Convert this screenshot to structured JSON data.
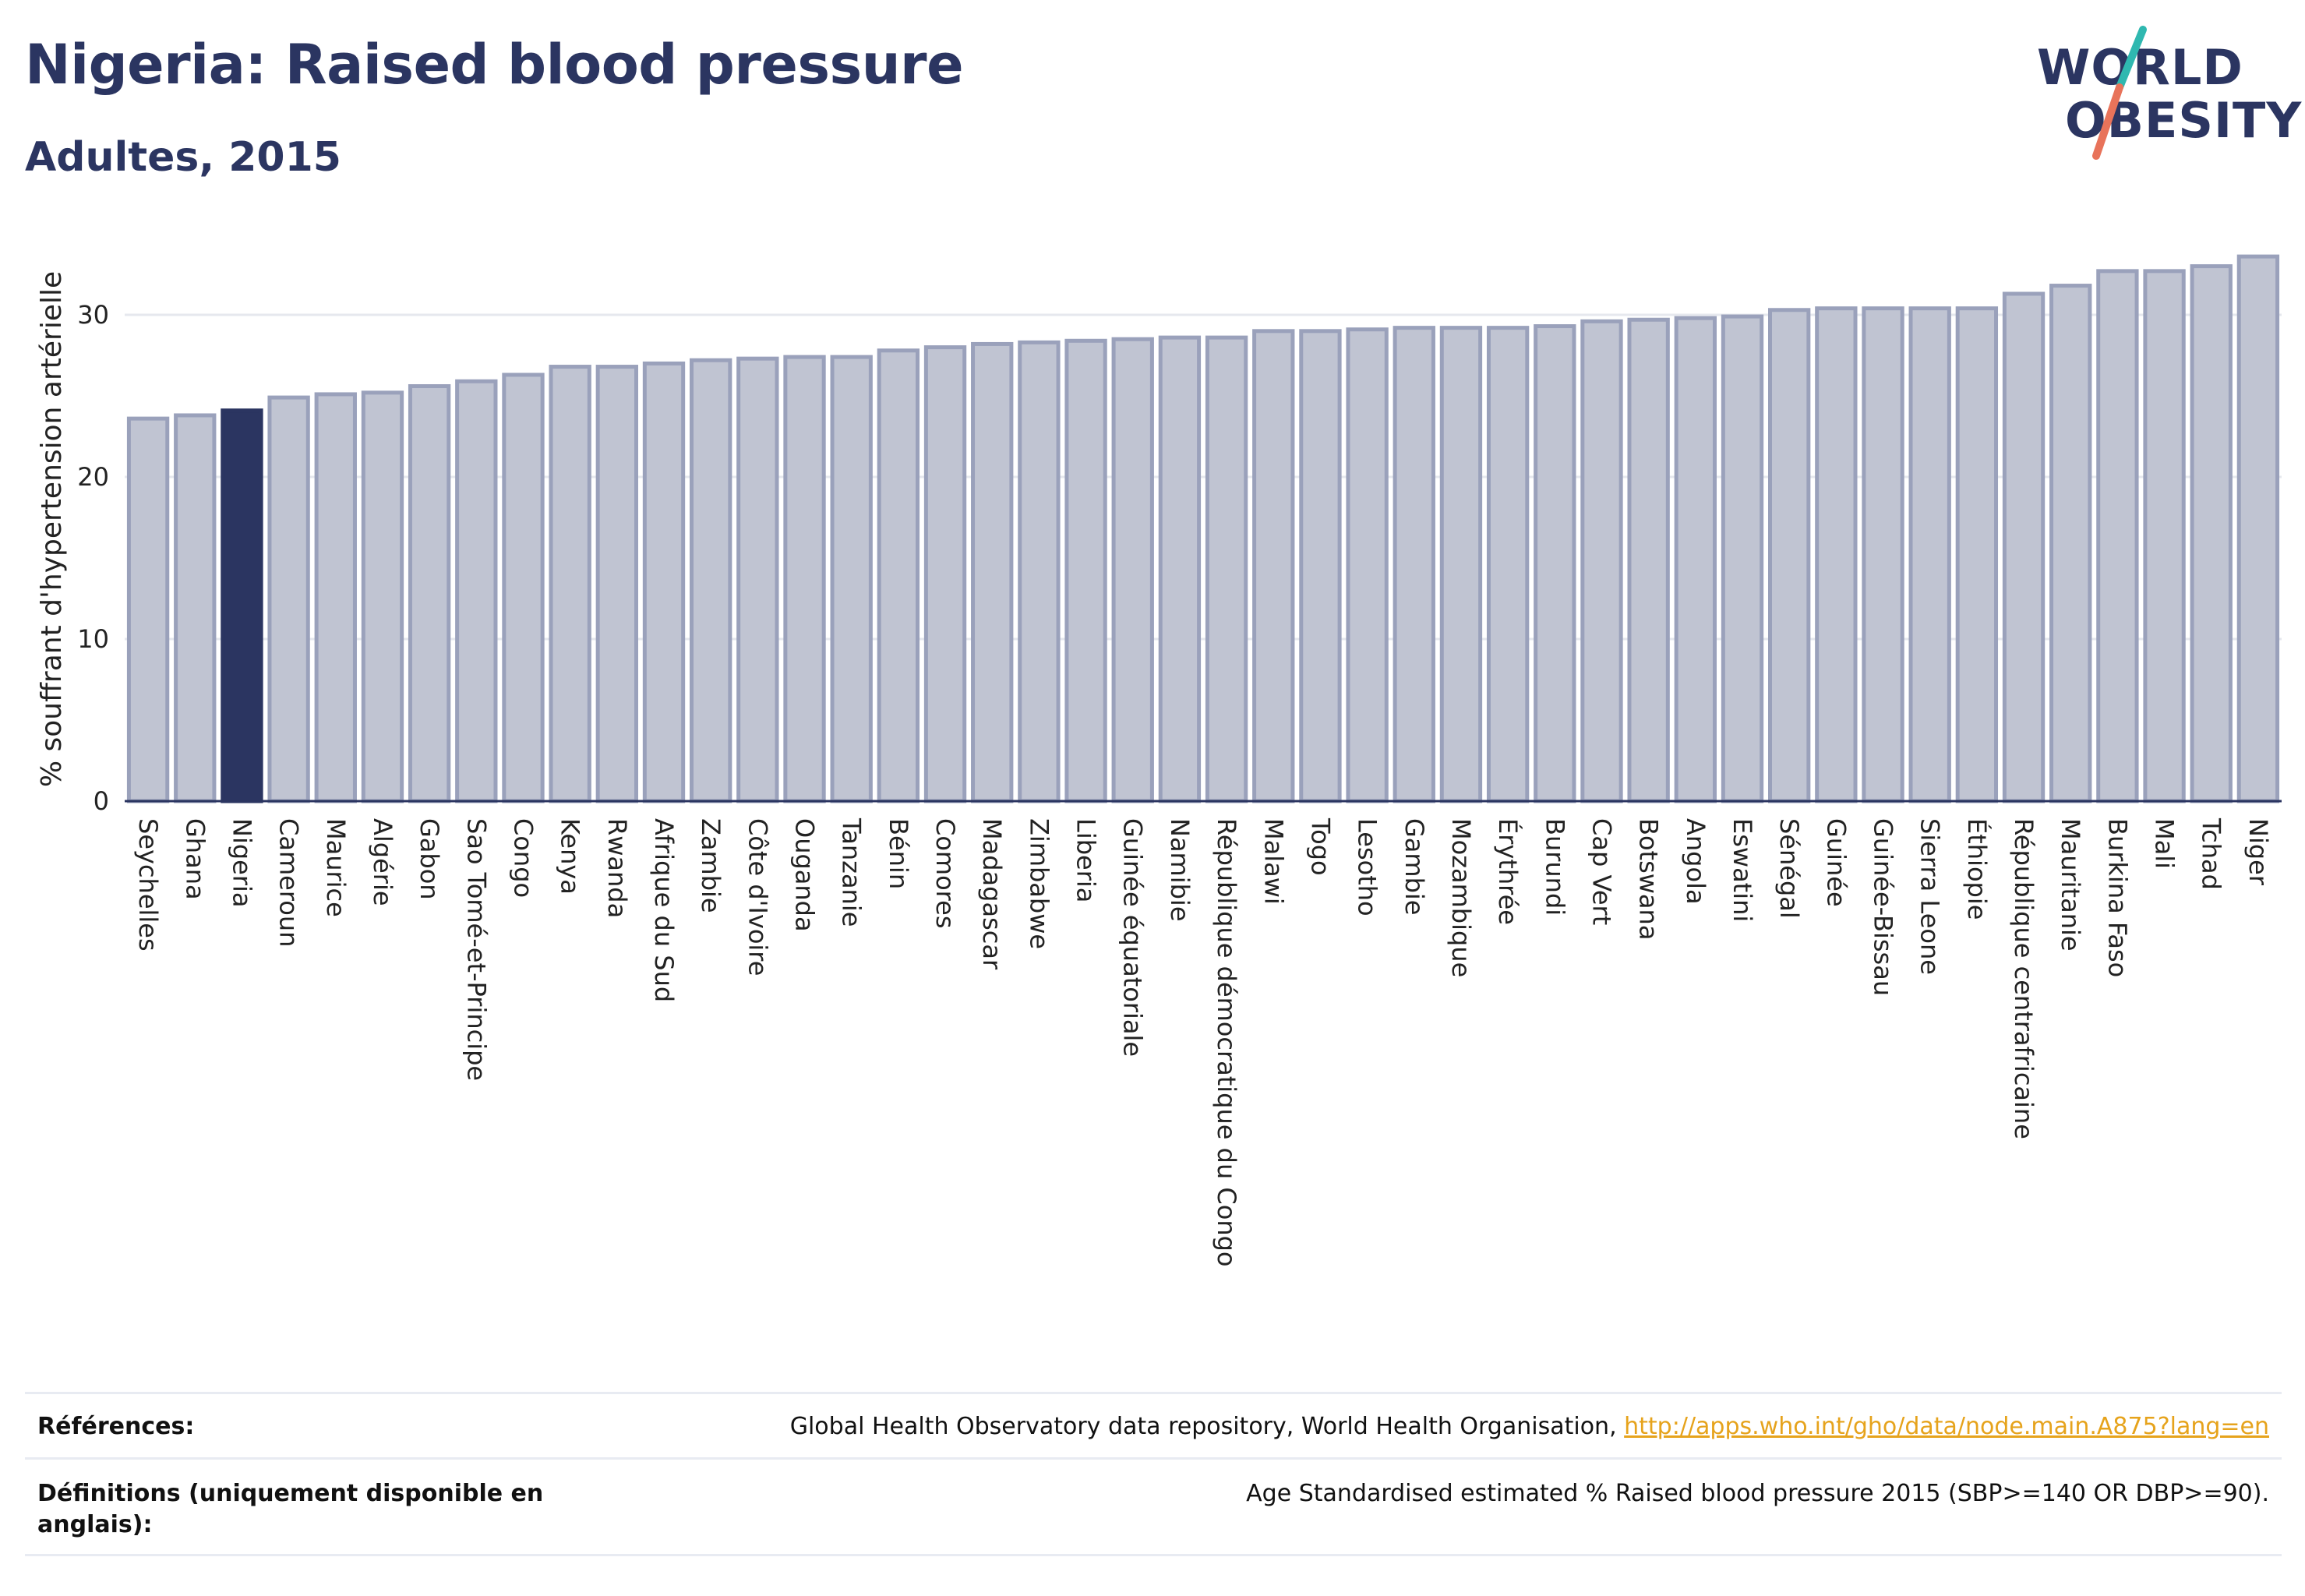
{
  "header": {
    "title": "Nigeria: Raised blood pressure",
    "subtitle": "Adultes, 2015"
  },
  "logo": {
    "line1": "WORLD",
    "line2": "OBESITY",
    "accent_colors": [
      "#2fb8b0",
      "#e8735a"
    ]
  },
  "colors": {
    "highlight": "#2b3561",
    "bar": "#c0c4d2",
    "bar_border": "#9aa1bb",
    "link": "#e6a31c"
  },
  "chart_data": {
    "type": "bar",
    "title": "Nigeria: Raised blood pressure",
    "subtitle": "Adultes, 2015",
    "ylabel": "% souffrant d'hypertension artérielle",
    "xlabel": "",
    "ylim": [
      0,
      35
    ],
    "yticks": [
      0,
      10,
      20,
      30
    ],
    "grid": true,
    "highlight": "Nigeria",
    "categories": [
      "Seychelles",
      "Ghana",
      "Nigeria",
      "Cameroun",
      "Maurice",
      "Algérie",
      "Gabon",
      "Sao Tomé-et-Principe",
      "Congo",
      "Kenya",
      "Rwanda",
      "Afrique du Sud",
      "Zambie",
      "Côte d'Ivoire",
      "Ouganda",
      "Tanzanie",
      "Bénin",
      "Comores",
      "Madagascar",
      "Zimbabwe",
      "Liberia",
      "Guinée équatoriale",
      "Namibie",
      "République démocratique du Congo",
      "Malawi",
      "Togo",
      "Lesotho",
      "Gambie",
      "Mozambique",
      "Érythrée",
      "Burundi",
      "Cap Vert",
      "Botswana",
      "Angola",
      "Eswatini",
      "Sénégal",
      "Guinée",
      "Guinée-Bissau",
      "Sierra Leone",
      "Éthiopie",
      "République centrafricaine",
      "Mauritanie",
      "Burkina Faso",
      "Mali",
      "Tchad",
      "Niger"
    ],
    "values": [
      23.6,
      23.8,
      24.1,
      24.9,
      25.1,
      25.2,
      25.6,
      25.9,
      26.3,
      26.8,
      26.8,
      27.0,
      27.2,
      27.3,
      27.4,
      27.4,
      27.8,
      28.0,
      28.2,
      28.3,
      28.4,
      28.5,
      28.6,
      28.6,
      29.0,
      29.0,
      29.1,
      29.2,
      29.2,
      29.2,
      29.3,
      29.6,
      29.7,
      29.8,
      29.9,
      30.3,
      30.4,
      30.4,
      30.4,
      30.4,
      31.3,
      31.8,
      32.7,
      32.7,
      33.0,
      33.6
    ]
  },
  "footer": {
    "references_label": "Références:",
    "references_text": "Global Health Observatory data repository, World Health Organisation, ",
    "references_link": "http://apps.who.int/gho/data/node.main.A875?lang=en",
    "definitions_label": "Définitions (uniquement disponible en anglais):",
    "definitions_text": "Age Standardised estimated % Raised blood pressure 2015 (SBP>=140 OR DBP>=90)."
  }
}
